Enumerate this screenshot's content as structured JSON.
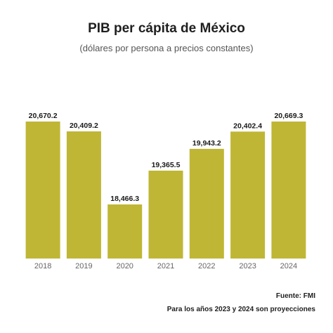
{
  "chart_data": {
    "type": "bar",
    "title": "PIB per cápita de México",
    "subtitle": "(dólares por persona a precios constantes)",
    "categories": [
      "2018",
      "2019",
      "2020",
      "2021",
      "2022",
      "2023",
      "2024"
    ],
    "values": [
      20670.2,
      20409.2,
      18466.3,
      19365.5,
      19943.2,
      20402.4,
      20669.3
    ],
    "value_labels": [
      "20,670.2",
      "20,409.2",
      "18,466.3",
      "19,365.5",
      "19,943.2",
      "20,402.4",
      "20,669.3"
    ],
    "bar_color": "#bfb635",
    "grid": false,
    "y_axis_visible": false,
    "source": "Fuente: FMI",
    "note": "Para los años 2023 y 2024 son proyecciones"
  }
}
